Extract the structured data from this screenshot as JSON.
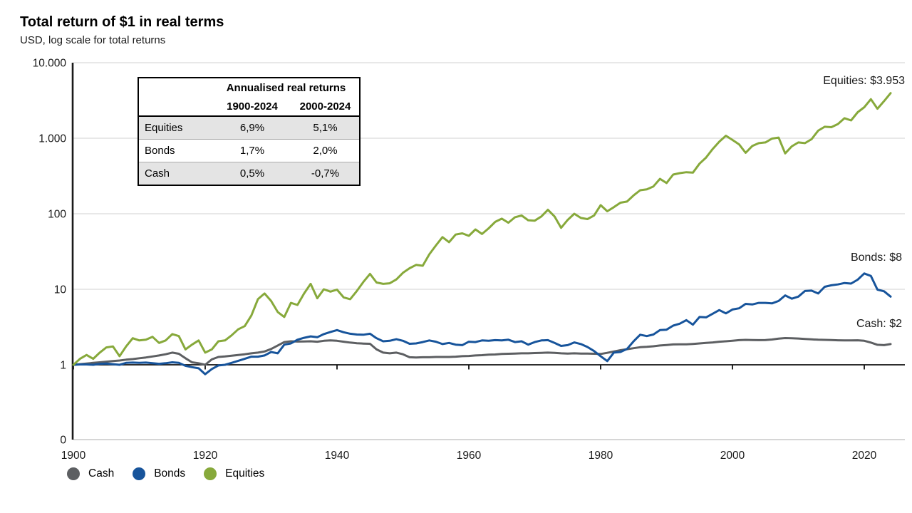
{
  "header": {
    "title": "Total return of $1 in real terms",
    "subtitle": "USD, log scale for total returns"
  },
  "table": {
    "title": "Annualised real returns",
    "columns": [
      "1900-2024",
      "2000-2024"
    ],
    "rows": [
      {
        "label": "Equities",
        "v1": "6,9%",
        "v2": "5,1%"
      },
      {
        "label": "Bonds",
        "v1": "1,7%",
        "v2": "2,0%"
      },
      {
        "label": "Cash",
        "v1": "0,5%",
        "v2": "-0,7%"
      }
    ]
  },
  "end_labels": {
    "equities": "Equities: $3.953",
    "bonds": "Bonds: $8",
    "cash": "Cash: $2"
  },
  "chart_data": {
    "type": "line",
    "title": "Total return of $1 in real terms",
    "subtitle": "USD, log scale for total returns",
    "y_axis": {
      "scale": "log",
      "ticks": [
        "0",
        "1",
        "10",
        "100",
        "1.000",
        "10.000"
      ]
    },
    "x_axis": {
      "ticks": [
        1900,
        1920,
        1940,
        1960,
        1980,
        2000,
        2020
      ]
    },
    "grid": "horizontal",
    "legend_position": "bottom-left",
    "years": [
      1900,
      1901,
      1902,
      1903,
      1904,
      1905,
      1906,
      1907,
      1908,
      1909,
      1910,
      1911,
      1912,
      1913,
      1914,
      1915,
      1916,
      1917,
      1918,
      1919,
      1920,
      1921,
      1922,
      1923,
      1924,
      1925,
      1926,
      1927,
      1928,
      1929,
      1930,
      1931,
      1932,
      1933,
      1934,
      1935,
      1936,
      1937,
      1938,
      1939,
      1940,
      1941,
      1942,
      1943,
      1944,
      1945,
      1946,
      1947,
      1948,
      1949,
      1950,
      1951,
      1952,
      1953,
      1954,
      1955,
      1956,
      1957,
      1958,
      1959,
      1960,
      1961,
      1962,
      1963,
      1964,
      1965,
      1966,
      1967,
      1968,
      1969,
      1970,
      1971,
      1972,
      1973,
      1974,
      1975,
      1976,
      1977,
      1978,
      1979,
      1980,
      1981,
      1982,
      1983,
      1984,
      1985,
      1986,
      1987,
      1988,
      1989,
      1990,
      1991,
      1992,
      1993,
      1994,
      1995,
      1996,
      1997,
      1998,
      1999,
      2000,
      2001,
      2002,
      2003,
      2004,
      2005,
      2006,
      2007,
      2008,
      2009,
      2010,
      2011,
      2012,
      2013,
      2014,
      2015,
      2016,
      2017,
      2018,
      2019,
      2020,
      2021,
      2022,
      2023,
      2024
    ],
    "series": [
      {
        "name": "Cash",
        "color": "#5d5f62",
        "final_value_label": "$2",
        "values": [
          1.0,
          1.02,
          1.04,
          1.06,
          1.08,
          1.1,
          1.12,
          1.14,
          1.17,
          1.19,
          1.22,
          1.25,
          1.29,
          1.33,
          1.38,
          1.45,
          1.4,
          1.22,
          1.08,
          1.05,
          1.0,
          1.18,
          1.27,
          1.29,
          1.32,
          1.35,
          1.38,
          1.42,
          1.45,
          1.5,
          1.62,
          1.8,
          2.0,
          2.05,
          2.03,
          2.04,
          2.05,
          2.02,
          2.08,
          2.1,
          2.08,
          2.02,
          1.97,
          1.93,
          1.91,
          1.9,
          1.6,
          1.45,
          1.42,
          1.45,
          1.38,
          1.26,
          1.25,
          1.26,
          1.26,
          1.27,
          1.27,
          1.27,
          1.28,
          1.3,
          1.31,
          1.33,
          1.34,
          1.36,
          1.37,
          1.39,
          1.4,
          1.41,
          1.42,
          1.42,
          1.43,
          1.44,
          1.45,
          1.44,
          1.42,
          1.41,
          1.42,
          1.41,
          1.41,
          1.4,
          1.39,
          1.44,
          1.5,
          1.56,
          1.61,
          1.66,
          1.71,
          1.73,
          1.76,
          1.8,
          1.83,
          1.86,
          1.87,
          1.87,
          1.89,
          1.92,
          1.95,
          1.98,
          2.02,
          2.05,
          2.08,
          2.12,
          2.14,
          2.13,
          2.12,
          2.13,
          2.16,
          2.22,
          2.26,
          2.25,
          2.23,
          2.2,
          2.17,
          2.15,
          2.14,
          2.13,
          2.11,
          2.1,
          2.1,
          2.11,
          2.08,
          1.97,
          1.84,
          1.82,
          1.88
        ]
      },
      {
        "name": "Bonds",
        "color": "#17549b",
        "final_value_label": "$8",
        "values": [
          1.0,
          1.01,
          1.01,
          1.0,
          1.03,
          1.04,
          1.02,
          1.0,
          1.06,
          1.07,
          1.06,
          1.07,
          1.05,
          1.03,
          1.05,
          1.08,
          1.06,
          0.97,
          0.93,
          0.9,
          0.75,
          0.88,
          0.98,
          1.0,
          1.06,
          1.13,
          1.2,
          1.28,
          1.28,
          1.33,
          1.48,
          1.42,
          1.85,
          1.92,
          2.15,
          2.28,
          2.38,
          2.32,
          2.55,
          2.72,
          2.88,
          2.7,
          2.58,
          2.52,
          2.5,
          2.58,
          2.25,
          2.05,
          2.08,
          2.18,
          2.08,
          1.9,
          1.92,
          2.0,
          2.1,
          2.02,
          1.88,
          1.95,
          1.85,
          1.82,
          2.02,
          2.0,
          2.1,
          2.08,
          2.12,
          2.1,
          2.15,
          2.0,
          2.05,
          1.85,
          2.0,
          2.1,
          2.12,
          1.95,
          1.78,
          1.82,
          1.98,
          1.88,
          1.72,
          1.52,
          1.3,
          1.12,
          1.45,
          1.48,
          1.62,
          2.05,
          2.5,
          2.4,
          2.52,
          2.88,
          2.92,
          3.3,
          3.5,
          3.9,
          3.4,
          4.3,
          4.25,
          4.75,
          5.3,
          4.8,
          5.4,
          5.6,
          6.4,
          6.3,
          6.6,
          6.6,
          6.5,
          7.0,
          8.3,
          7.5,
          8.0,
          9.5,
          9.6,
          8.8,
          10.8,
          11.3,
          11.6,
          12.1,
          11.9,
          13.4,
          16.2,
          15.0,
          9.9,
          9.4,
          8.0
        ]
      },
      {
        "name": "Equities",
        "color": "#87a93b",
        "final_value_label": "$3.953",
        "values": [
          1.0,
          1.2,
          1.35,
          1.2,
          1.45,
          1.7,
          1.75,
          1.3,
          1.75,
          2.25,
          2.1,
          2.15,
          2.35,
          1.95,
          2.1,
          2.55,
          2.4,
          1.6,
          1.85,
          2.1,
          1.45,
          1.6,
          2.05,
          2.1,
          2.45,
          2.95,
          3.25,
          4.5,
          7.4,
          8.8,
          7.0,
          5.0,
          4.3,
          6.6,
          6.2,
          8.8,
          11.8,
          7.6,
          10.0,
          9.3,
          9.9,
          7.8,
          7.4,
          9.5,
          12.5,
          16.0,
          12.3,
          11.8,
          12.0,
          13.5,
          16.5,
          19.0,
          21.0,
          20.5,
          29.0,
          38.0,
          49.0,
          42.0,
          53.0,
          55.0,
          51.0,
          62.0,
          54.0,
          64.0,
          78.0,
          86.0,
          76.0,
          90.0,
          95.0,
          82.0,
          81.0,
          92.0,
          113.0,
          92.0,
          65.0,
          83.0,
          100.0,
          88.0,
          85.0,
          95.0,
          130.0,
          108.0,
          122.0,
          140.0,
          145.0,
          175.0,
          205.0,
          210.0,
          230.0,
          290.0,
          255.0,
          330.0,
          345.0,
          355.0,
          350.0,
          460.0,
          555.0,
          720.0,
          900.0,
          1080.0,
          950.0,
          830.0,
          640.0,
          790.0,
          860.0,
          880.0,
          990.0,
          1020.0,
          630.0,
          780.0,
          880.0,
          860.0,
          970.0,
          1260.0,
          1420.0,
          1400.0,
          1540.0,
          1840.0,
          1720.0,
          2210.0,
          2570.0,
          3290.0,
          2460.0,
          3100.0,
          3953.0
        ]
      }
    ]
  }
}
